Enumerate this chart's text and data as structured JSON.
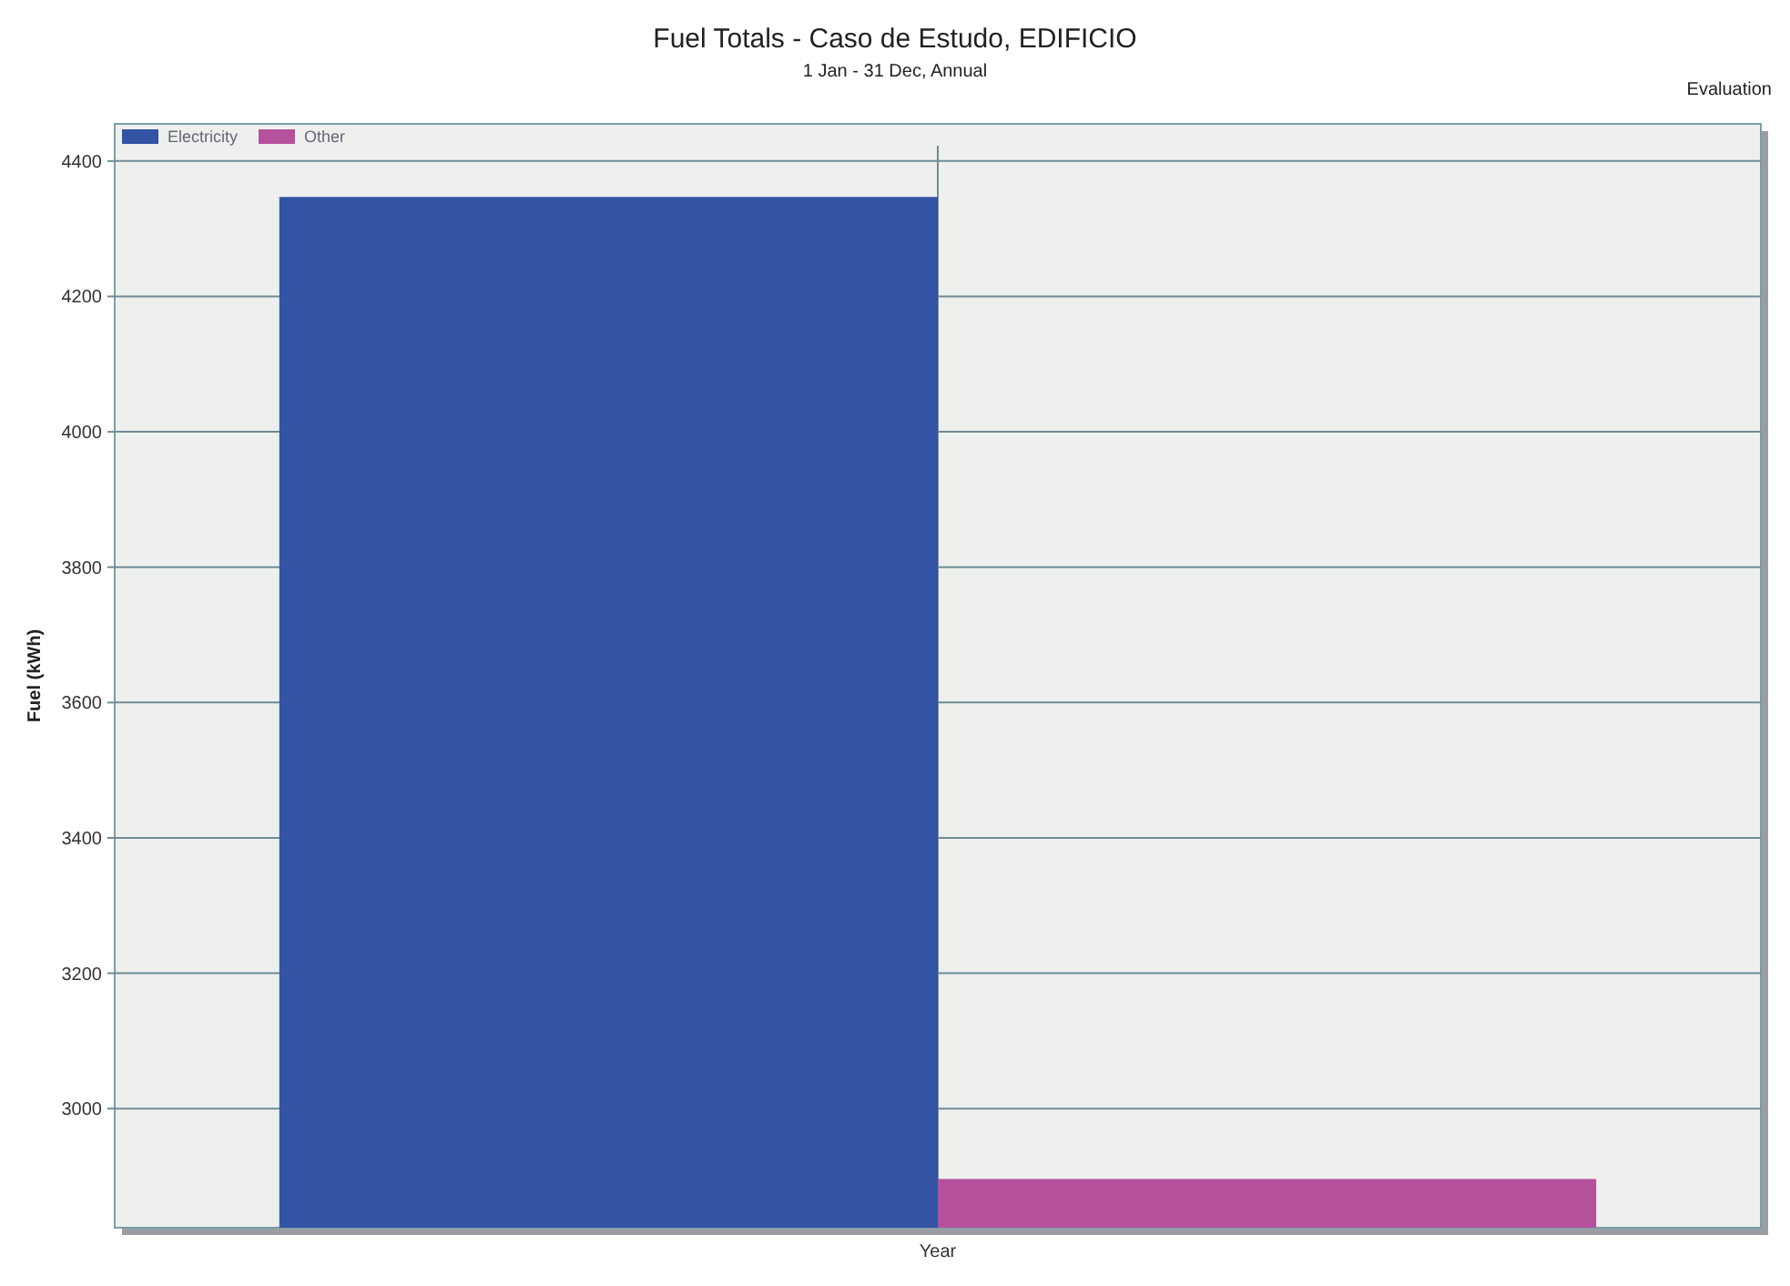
{
  "chart_data": {
    "type": "bar",
    "title": "Fuel Totals - Caso de Estudo, EDIFICIO",
    "subtitle": "1 Jan - 31 Dec, Annual",
    "ylabel": "Fuel (kWh)",
    "annotations": [
      "Evaluation"
    ],
    "categories": [
      "Year"
    ],
    "series": [
      {
        "name": "Electricity",
        "color": "#3353a5",
        "values": [
          4347
        ]
      },
      {
        "name": "Other",
        "color": "#b5519d",
        "values": [
          2896
        ]
      }
    ],
    "ylim": [
      2824,
      4455
    ],
    "yticks": [
      3000,
      3200,
      3400,
      3600,
      3800,
      4000,
      4200,
      4400
    ],
    "grid": true,
    "legend": "top left"
  }
}
